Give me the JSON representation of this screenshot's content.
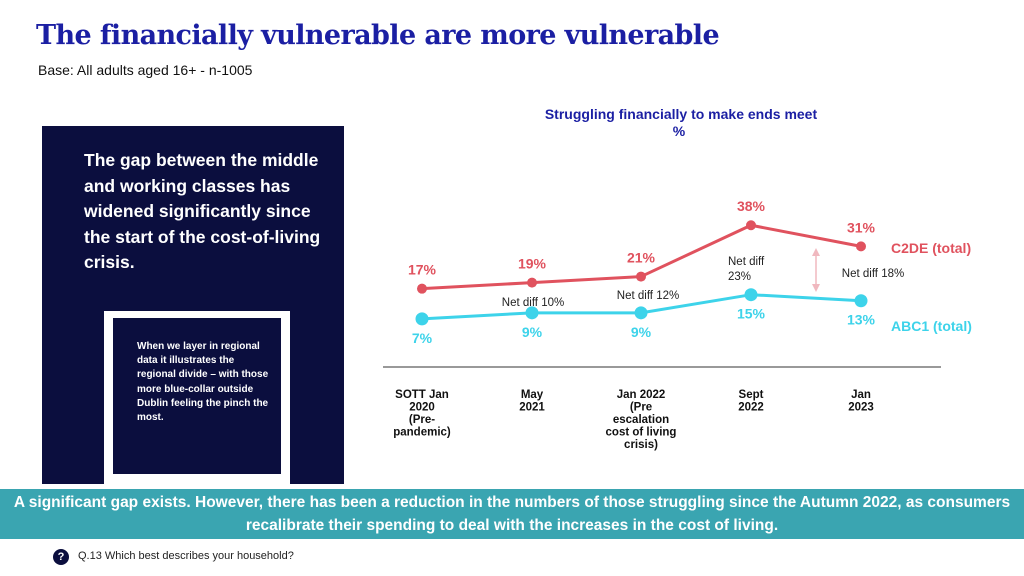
{
  "header": {
    "title": "The financially vulnerable are more vulnerable",
    "base": "Base: All adults aged 16+ - n-1005"
  },
  "callout": {
    "main": "The gap between the middle and working classes has widened significantly since the start of the cost-of-living crisis.",
    "detail": "When we layer in regional data it illustrates the regional divide – with those more blue-collar outside Dublin feeling the pinch the most."
  },
  "banner": {
    "text": "A significant gap exists. However, there has been a reduction in the numbers of those struggling since the Autumn 2022, as consumers recalibrate their spending to deal with the increases in the cost of living."
  },
  "footer": {
    "question": "Q.13 Which best describes your household?",
    "icon": "?"
  },
  "chart_data": {
    "type": "line",
    "title": "Struggling financially to make ends meet",
    "subtitle": "%",
    "categories": [
      [
        "SOTT Jan",
        "2020",
        "(Pre-",
        "pandemic)"
      ],
      [
        "May",
        "2021"
      ],
      [
        "Jan 2022",
        "(Pre",
        "escalation",
        "cost of living",
        "crisis)"
      ],
      [
        "Sept",
        "2022"
      ],
      [
        "Jan",
        "2023"
      ]
    ],
    "series": [
      {
        "name": "C2DE (total)",
        "color": "#e0525e",
        "values": [
          17,
          19,
          21,
          38,
          31
        ],
        "labels": [
          "17%",
          "19%",
          "21%",
          "38%",
          "31%"
        ]
      },
      {
        "name": "ABC1 (total)",
        "color": "#3dd3ea",
        "values": [
          7,
          9,
          9,
          15,
          13
        ],
        "labels": [
          "7%",
          "9%",
          "9%",
          "15%",
          "13%"
        ]
      }
    ],
    "annotations": [
      {
        "lines": [
          "Net diff 10%"
        ],
        "category": 1
      },
      {
        "lines": [
          "Net diff 12%"
        ],
        "category": 2
      },
      {
        "lines": [
          "Net diff",
          "23%"
        ],
        "category": 3
      },
      {
        "lines": [
          "Net diff 18%"
        ],
        "category": 4
      }
    ],
    "arrow_color": "#f0b8bf",
    "axis_color": "#333333",
    "title_color": "#1b1fa3"
  }
}
